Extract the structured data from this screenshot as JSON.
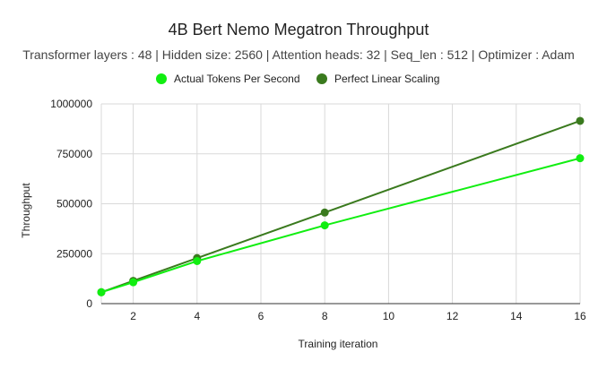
{
  "chart_data": {
    "type": "line",
    "title": "4B Bert Nemo Megatron Throughput",
    "subtitle": "Transformer layers : 48 | Hidden size: 2560 | Attention heads: 32 | Seq_len : 512 | Optimizer : Adam",
    "xlabel": "Training iteration",
    "ylabel": "Throughput",
    "xlim": [
      1,
      16
    ],
    "ylim": [
      0,
      1000000
    ],
    "x_ticks": [
      2,
      4,
      6,
      8,
      10,
      12,
      14,
      16
    ],
    "y_ticks": [
      0,
      250000,
      500000,
      750000,
      1000000
    ],
    "x_tick_labels": [
      "2",
      "4",
      "6",
      "8",
      "10",
      "12",
      "14",
      "16"
    ],
    "y_tick_labels": [
      "0",
      "250000",
      "500000",
      "750000",
      "1000000"
    ],
    "grid": true,
    "legend_position": "top",
    "series": [
      {
        "name": "Actual Tokens Per Second",
        "color": "#11ee11",
        "x": [
          1,
          2,
          4,
          8,
          16
        ],
        "y": [
          57000,
          107000,
          213000,
          392000,
          728000
        ]
      },
      {
        "name": "Perfect Linear Scaling",
        "color": "#3a7a1e",
        "x": [
          1,
          2,
          4,
          8,
          16
        ],
        "y": [
          57000,
          114000,
          228000,
          456000,
          915000
        ]
      }
    ]
  }
}
